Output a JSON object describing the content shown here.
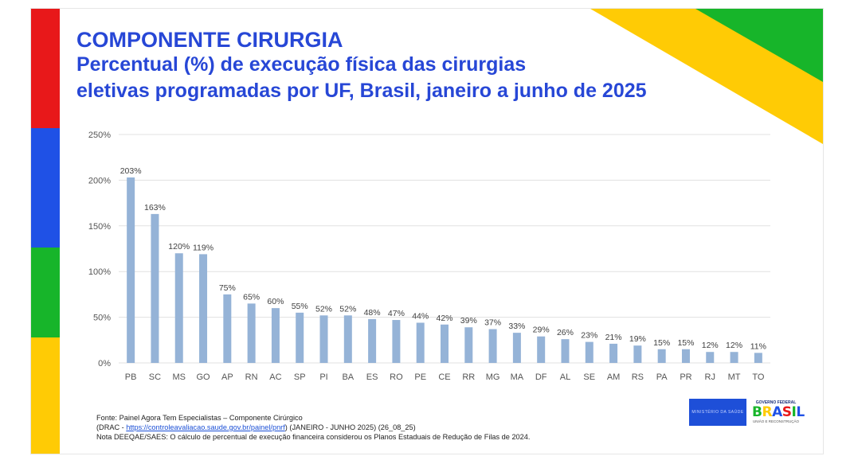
{
  "header": {
    "title": "COMPONENTE CIRURGIA",
    "subtitle_line1": "Percentual (%) de execução física das cirurgias",
    "subtitle_line2": "eletivas programadas por UF, Brasil, janeiro a junho de 2025"
  },
  "colors": {
    "bar": "#95b3d7",
    "title": "#2747d6",
    "stripe": [
      "#e8181a",
      "#1f51e6",
      "#17b52a",
      "#ffcb05"
    ],
    "corner_green": "#17b52a",
    "corner_yellow": "#ffcb05"
  },
  "chart_data": {
    "type": "bar",
    "categories": [
      "PB",
      "SC",
      "MS",
      "GO",
      "AP",
      "RN",
      "AC",
      "SP",
      "PI",
      "BA",
      "ES",
      "RO",
      "PE",
      "CE",
      "RR",
      "MG",
      "MA",
      "DF",
      "AL",
      "SE",
      "AM",
      "RS",
      "PA",
      "PR",
      "RJ",
      "MT",
      "TO"
    ],
    "values": [
      203,
      163,
      120,
      119,
      75,
      65,
      60,
      55,
      52,
      52,
      48,
      47,
      44,
      42,
      39,
      37,
      33,
      29,
      26,
      23,
      21,
      19,
      15,
      15,
      12,
      12,
      11
    ],
    "value_labels": [
      "203%",
      "163%",
      "120%",
      "119%",
      "75%",
      "65%",
      "60%",
      "55%",
      "52%",
      "52%",
      "48%",
      "47%",
      "44%",
      "42%",
      "39%",
      "37%",
      "33%",
      "29%",
      "26%",
      "23%",
      "21%",
      "19%",
      "15%",
      "15%",
      "12%",
      "12%",
      "11%"
    ],
    "y_ticks": [
      "0%",
      "50%",
      "100%",
      "150%",
      "200%",
      "250%"
    ],
    "y_tick_values": [
      0,
      50,
      100,
      150,
      200,
      250
    ],
    "ylim": [
      0,
      250
    ],
    "grid": true,
    "legend": "none"
  },
  "footer": {
    "line1": "Fonte: Painel Agora Tem Especialistas – Componente Cirúrgico",
    "line2_prefix": "(DRAC - ",
    "line2_link": "https://controleavaliacao.saude.gov.br/painel/pnrf",
    "line2_suffix": ") (JANEIRO - JUNHO 2025) (26_08_25)",
    "line3": "Nota DEEQAE/SAES: O cálculo de percentual de execução financeira considerou os Planos Estaduais de Redução de Filas de 2024."
  },
  "logos": {
    "ministry": "MINISTÉRIO DA SAÚDE",
    "gov_top": "GOVERNO FEDERAL",
    "gov_word": "BRASIL",
    "gov_sub": "UNIÃO E RECONSTRUÇÃO"
  }
}
